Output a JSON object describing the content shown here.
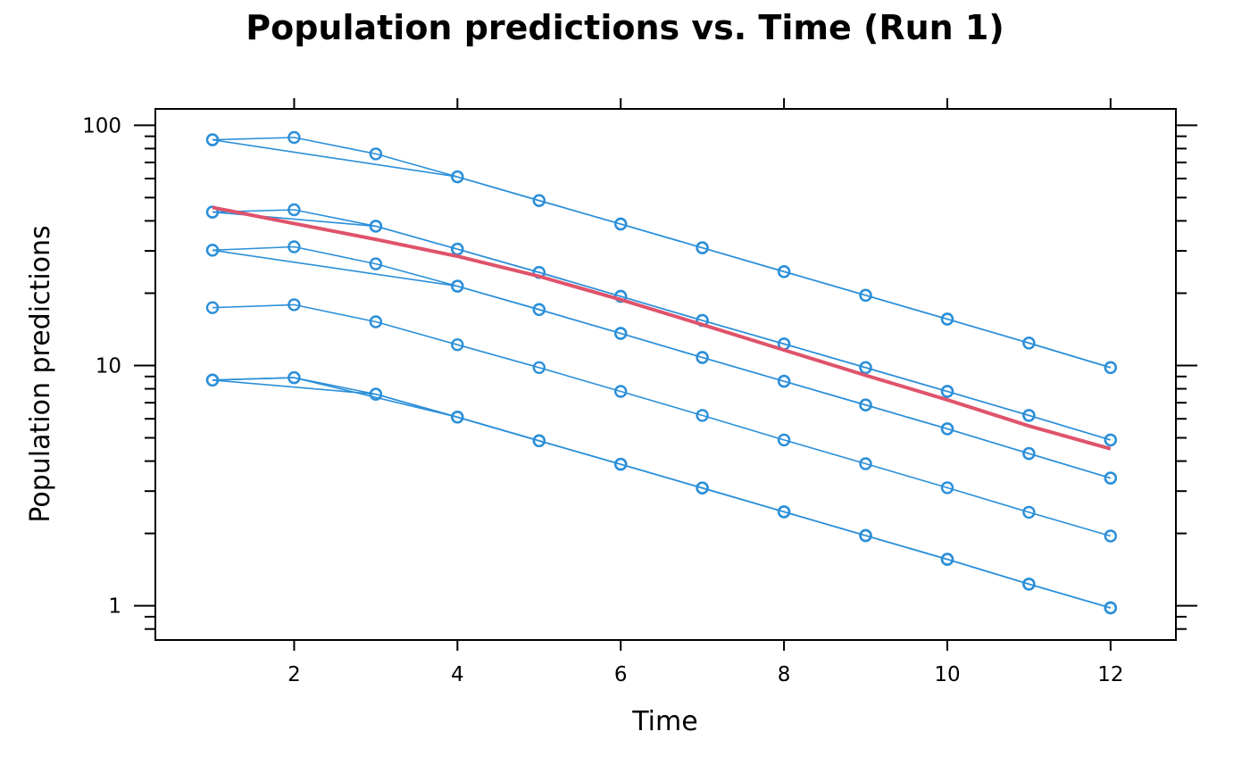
{
  "chart_data": {
    "type": "line",
    "title": "Population predictions vs. Time (Run 1)",
    "xlabel": "Time",
    "ylabel": "Population predictions",
    "x_scale": "linear",
    "y_scale": "log10",
    "xlim": [
      0.3,
      12.8
    ],
    "ylim": [
      0.72,
      117
    ],
    "x_ticks": [
      2,
      4,
      6,
      8,
      10,
      12
    ],
    "x_tick_labels": [
      "2",
      "4",
      "6",
      "8",
      "10",
      "12"
    ],
    "y_ticks": [
      1,
      10,
      100
    ],
    "y_tick_labels": [
      "1",
      "10",
      "100"
    ],
    "grid": false,
    "legend": "none",
    "colors": {
      "series": "#2b8fd9",
      "trend": "#df536b"
    },
    "series": [
      {
        "x": [
          1,
          2,
          3,
          4,
          5,
          6,
          7,
          8,
          9,
          10,
          11,
          12
        ],
        "y": [
          87,
          89,
          76,
          61,
          48.6,
          38.8,
          30.9,
          24.6,
          19.6,
          15.6,
          12.4,
          9.8
        ]
      },
      {
        "x": [
          1,
          4,
          5,
          6,
          7,
          8,
          9,
          10,
          11,
          12
        ],
        "y": [
          87,
          61,
          48.6,
          38.8,
          30.9,
          24.6,
          19.6,
          15.6,
          12.4,
          9.8
        ]
      },
      {
        "x": [
          1,
          2,
          3,
          4,
          5,
          6,
          7,
          8,
          9,
          10,
          11,
          12
        ],
        "y": [
          43.5,
          44.5,
          38,
          30.5,
          24.4,
          19.4,
          15.4,
          12.3,
          9.8,
          7.8,
          6.2,
          4.9
        ]
      },
      {
        "x": [
          1,
          3,
          4,
          5,
          6,
          7,
          8,
          9,
          10,
          11,
          12
        ],
        "y": [
          43.5,
          38,
          30.5,
          24.4,
          19.4,
          15.4,
          12.3,
          9.8,
          7.8,
          6.2,
          4.9
        ]
      },
      {
        "x": [
          1,
          2,
          3,
          4,
          5,
          6,
          7,
          8,
          9,
          10,
          11,
          12
        ],
        "y": [
          30.2,
          31.2,
          26.5,
          21.4,
          17.1,
          13.6,
          10.8,
          8.6,
          6.85,
          5.45,
          4.3,
          3.4
        ]
      },
      {
        "x": [
          1,
          4,
          5,
          6,
          7,
          8,
          9,
          10,
          11,
          12
        ],
        "y": [
          30.2,
          21.4,
          17.1,
          13.6,
          10.8,
          8.6,
          6.85,
          5.45,
          4.3,
          3.4
        ]
      },
      {
        "x": [
          1,
          2,
          3,
          4,
          5,
          6,
          7,
          8,
          9,
          10,
          11,
          12
        ],
        "y": [
          17.4,
          17.9,
          15.2,
          12.2,
          9.8,
          7.8,
          6.2,
          4.9,
          3.9,
          3.1,
          2.45,
          1.95
        ]
      },
      {
        "x": [
          1,
          2,
          3,
          4,
          5,
          6,
          7,
          8,
          9,
          10,
          11,
          12
        ],
        "y": [
          8.7,
          8.9,
          7.6,
          6.1,
          4.86,
          3.88,
          3.09,
          2.46,
          1.96,
          1.56,
          1.23,
          0.98
        ]
      },
      {
        "x": [
          1,
          3,
          4,
          5,
          6,
          7,
          8,
          9,
          10,
          11,
          12
        ],
        "y": [
          8.7,
          7.6,
          6.1,
          4.86,
          3.88,
          3.09,
          2.46,
          1.96,
          1.56,
          1.23,
          0.98
        ]
      },
      {
        "x": [
          1,
          2,
          4,
          5,
          6,
          7,
          8,
          9,
          10,
          11,
          12
        ],
        "y": [
          8.7,
          8.9,
          6.1,
          4.86,
          3.88,
          3.09,
          2.46,
          1.96,
          1.56,
          1.23,
          0.98
        ]
      }
    ],
    "trend": {
      "x": [
        1,
        2,
        3,
        4,
        5,
        6,
        7,
        8,
        9,
        10,
        11,
        12
      ],
      "y": [
        45.5,
        39,
        33.5,
        28.5,
        23.5,
        18.8,
        14.8,
        11.6,
        9.1,
        7.2,
        5.6,
        4.5
      ]
    }
  }
}
